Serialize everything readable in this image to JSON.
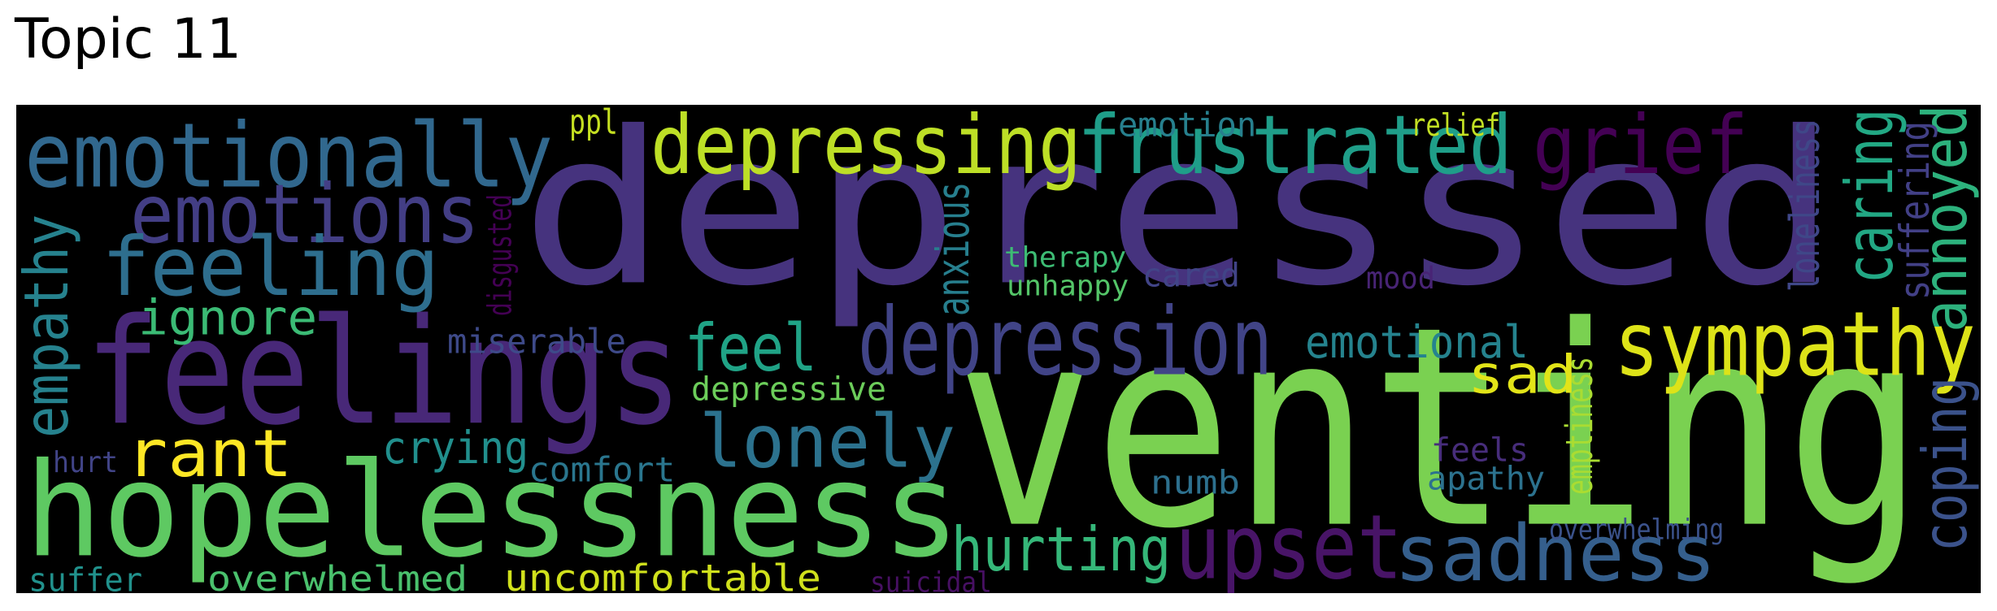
{
  "title": "Topic 11",
  "words": [
    {
      "text": "depressed",
      "color": "#46337e"
    },
    {
      "text": "venting",
      "color": "#7ad151"
    },
    {
      "text": "hopelessness",
      "color": "#5ec962"
    },
    {
      "text": "feelings",
      "color": "#482878"
    },
    {
      "text": "emotionally",
      "color": "#31688e"
    },
    {
      "text": "depressing",
      "color": "#bddf26"
    },
    {
      "text": "frustrated",
      "color": "#1f9e89"
    },
    {
      "text": "grief",
      "color": "#440154"
    },
    {
      "text": "depression",
      "color": "#414487"
    },
    {
      "text": "sympathy",
      "color": "#dde318"
    },
    {
      "text": "sadness",
      "color": "#355f8d"
    },
    {
      "text": "upset",
      "color": "#481467"
    },
    {
      "text": "lonely",
      "color": "#2c728e"
    },
    {
      "text": "emotions",
      "color": "#433e85"
    },
    {
      "text": "feeling",
      "color": "#2e6e8e"
    },
    {
      "text": "rant",
      "color": "#fde725"
    },
    {
      "text": "hurting",
      "color": "#35b779"
    },
    {
      "text": "empathy",
      "color": "#26828e"
    },
    {
      "text": "annoyed",
      "color": "#2db27d"
    },
    {
      "text": "caring",
      "color": "#22a884"
    },
    {
      "text": "coping",
      "color": "#3b528b"
    },
    {
      "text": "ignore",
      "color": "#3bbb75"
    },
    {
      "text": "feel",
      "color": "#20a386"
    },
    {
      "text": "sad",
      "color": "#e2e418"
    },
    {
      "text": "emotional",
      "color": "#25838e"
    },
    {
      "text": "crying",
      "color": "#218f8d"
    },
    {
      "text": "uncomfortable",
      "color": "#d0e11c"
    },
    {
      "text": "overwhelmed",
      "color": "#4ac16d"
    },
    {
      "text": "miserable",
      "color": "#3e4a89"
    },
    {
      "text": "depressive",
      "color": "#6ccd5a"
    },
    {
      "text": "comfort",
      "color": "#2a768e"
    },
    {
      "text": "emotion",
      "color": "#27808e"
    },
    {
      "text": "suffering",
      "color": "#424086"
    },
    {
      "text": "loneliness",
      "color": "#3f4788"
    },
    {
      "text": "anxious",
      "color": "#277f8e"
    },
    {
      "text": "emptiness",
      "color": "#aadc32"
    },
    {
      "text": "suffer",
      "color": "#21918c"
    },
    {
      "text": "cared",
      "color": "#414487"
    },
    {
      "text": "apathy",
      "color": "#2c728e"
    },
    {
      "text": "feels",
      "color": "#472d7b"
    },
    {
      "text": "numb",
      "color": "#2d708e"
    },
    {
      "text": "therapy",
      "color": "#3dbc74"
    },
    {
      "text": "unhappy",
      "color": "#54c568"
    },
    {
      "text": "relief",
      "color": "#c2df23"
    },
    {
      "text": "ppl",
      "color": "#c5e021"
    },
    {
      "text": "mood",
      "color": "#482475"
    },
    {
      "text": "hurt",
      "color": "#414487"
    },
    {
      "text": "disgusted",
      "color": "#440154"
    },
    {
      "text": "overwhelming",
      "color": "#3b528b"
    },
    {
      "text": "suicidal",
      "color": "#471063"
    }
  ]
}
